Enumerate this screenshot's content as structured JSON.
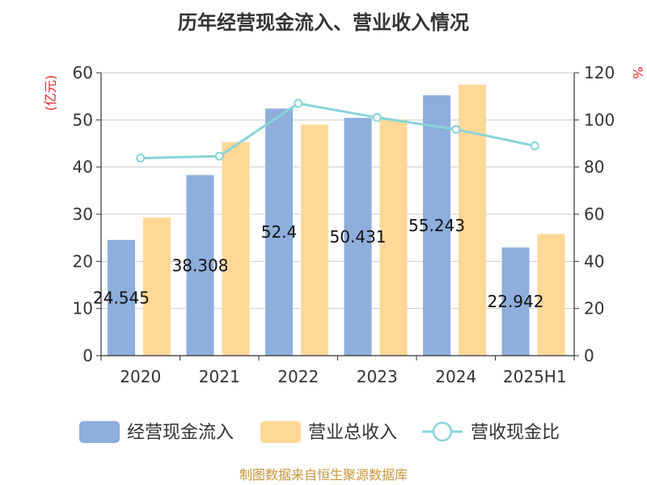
{
  "chart_data": {
    "type": "bar",
    "title": "历年经营现金流入、营业收入情况",
    "categories": [
      "2020",
      "2021",
      "2022",
      "2023",
      "2024",
      "2025H1"
    ],
    "left_axis": {
      "unit": "(亿元)",
      "range": [
        0,
        60
      ],
      "ticks": [
        0,
        10,
        20,
        30,
        40,
        50,
        60
      ]
    },
    "right_axis": {
      "unit": "%",
      "range": [
        0,
        120
      ],
      "ticks": [
        0,
        20,
        40,
        60,
        80,
        100,
        120
      ]
    },
    "grid": true,
    "legend_position": "bottom",
    "series": [
      {
        "name": "经营现金流入",
        "type": "bar",
        "axis": "left",
        "color": "#8eaedc",
        "values": [
          24.545,
          38.308,
          52.4,
          50.431,
          55.243,
          22.942
        ],
        "labels": [
          "24.545",
          "38.308",
          "52.4",
          "50.431",
          "55.243",
          "22.942"
        ]
      },
      {
        "name": "营业总收入",
        "type": "bar",
        "axis": "left",
        "color": "#ffd897",
        "values": [
          29.3,
          45.3,
          49.0,
          50.1,
          57.5,
          25.8
        ]
      },
      {
        "name": "营收现金比",
        "type": "line",
        "axis": "right",
        "color": "#88d4d8",
        "values": [
          83.8,
          84.6,
          107.0,
          101.0,
          96.0,
          89.0
        ]
      }
    ]
  },
  "footer": {
    "source": "制图数据来自恒生聚源数据库"
  }
}
